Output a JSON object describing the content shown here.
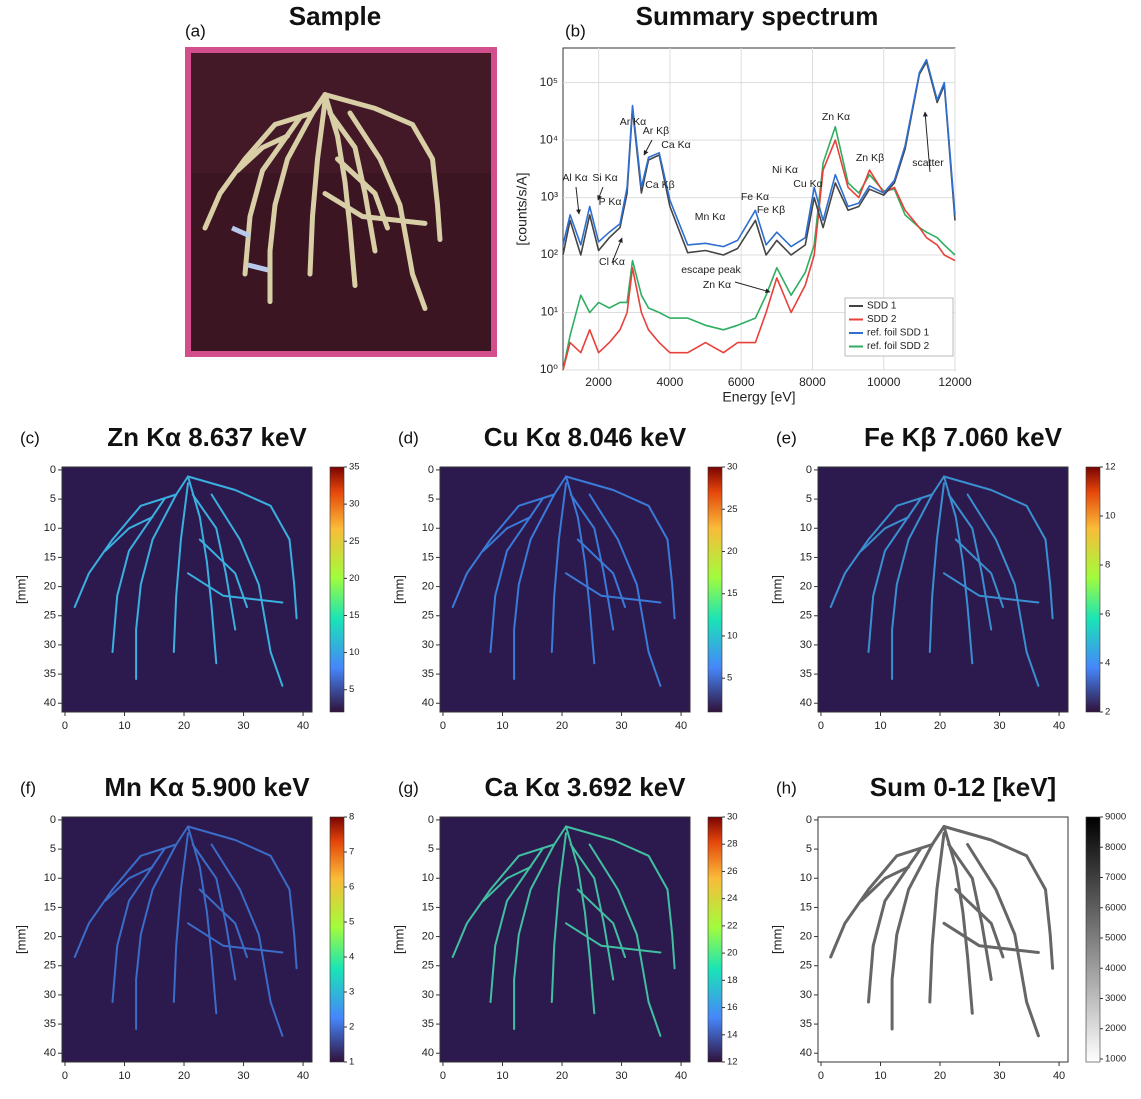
{
  "chart_data": [
    {
      "type": "image",
      "panel_label": "(a)",
      "title": "Sample"
    },
    {
      "type": "line",
      "panel_label": "(b)",
      "title": "Summary spectrum",
      "xlabel": "Energy [eV]",
      "ylabel": "[counts/s/A]",
      "log_y": true,
      "grid": true,
      "legend": "lower right",
      "x": [
        1000,
        1200,
        1500,
        1750,
        2000,
        2300,
        2600,
        2800,
        2950,
        3200,
        3400,
        3700,
        4000,
        4500,
        5000,
        5500,
        5900,
        6400,
        6700,
        7000,
        7400,
        7800,
        8050,
        8300,
        8640,
        9000,
        9300,
        9600,
        10000,
        10300,
        10600,
        11000,
        11200,
        11500,
        11700,
        12000
      ],
      "series": [
        {
          "name": "SDD 1",
          "color": "#444444",
          "values": [
            100,
            400,
            100,
            500,
            120,
            200,
            300,
            1200,
            35000,
            1200,
            4500,
            5500,
            700,
            110,
            120,
            100,
            130,
            400,
            100,
            180,
            100,
            150,
            1000,
            300,
            1800,
            600,
            700,
            1400,
            1100,
            1800,
            7000,
            140000,
            230000,
            45000,
            90000,
            400
          ]
        },
        {
          "name": "SDD 2",
          "color": "#e8403a",
          "values": [
            1,
            3,
            2,
            5,
            2,
            3,
            5,
            10,
            60,
            10,
            5,
            3,
            2,
            2,
            3,
            2,
            3,
            3,
            10,
            40,
            10,
            30,
            100,
            3000,
            10000,
            1500,
            1000,
            3000,
            1200,
            1500,
            600,
            300,
            200,
            150,
            100,
            80
          ]
        },
        {
          "name": "ref. foil SDD 1",
          "color": "#2f6fd0",
          "values": [
            150,
            500,
            150,
            700,
            170,
            250,
            350,
            1500,
            40000,
            1500,
            5000,
            6000,
            900,
            150,
            160,
            140,
            180,
            600,
            150,
            250,
            140,
            200,
            1500,
            400,
            2500,
            700,
            800,
            1600,
            1200,
            2000,
            8000,
            150000,
            250000,
            50000,
            100000,
            500
          ]
        },
        {
          "name": "ref. foil SDD 2",
          "color": "#2fae62",
          "values": [
            1,
            4,
            20,
            10,
            15,
            12,
            15,
            15,
            80,
            20,
            12,
            10,
            8,
            8,
            6,
            5,
            6,
            8,
            20,
            60,
            20,
            50,
            150,
            4000,
            17000,
            1800,
            1200,
            2500,
            1300,
            1400,
            500,
            300,
            250,
            200,
            150,
            100
          ]
        }
      ],
      "xlim": [
        1000,
        12000
      ],
      "xticks": [
        2000,
        4000,
        6000,
        8000,
        10000,
        12000
      ],
      "ylim": [
        1,
        400000
      ],
      "yticks": [
        {
          "value": 1,
          "label": "10⁰"
        },
        {
          "value": 10,
          "label": "10¹"
        },
        {
          "value": 100,
          "label": "10²"
        },
        {
          "value": 1000,
          "label": "10³"
        },
        {
          "value": 10000,
          "label": "10⁴"
        },
        {
          "value": 100000,
          "label": "10⁵"
        }
      ],
      "annotations": [
        "Al Kα",
        "Si Kα",
        "P Kα",
        "Cl Kα",
        "Ar Kα",
        "Ar Kβ",
        "Ca Kα",
        "Ca Kβ",
        "Mn Kα",
        "Fe Kα",
        "Fe Kβ",
        "Ni Kα",
        "Cu Kα",
        "Zn Kα",
        "Zn Kβ",
        "scatter",
        "escape peak",
        "Zn Kα"
      ]
    },
    {
      "type": "heatmap",
      "panel_label": "(c)",
      "title": "Zn Kα 8.637 keV",
      "ylabel": "[mm]",
      "colormap": "turbo",
      "xlim": [
        -0.5,
        41.5
      ],
      "xticks": [
        0,
        10,
        20,
        30,
        40
      ],
      "ylim": [
        41.5,
        -0.5
      ],
      "yticks": [
        0,
        5,
        10,
        15,
        20,
        25,
        30,
        35,
        40
      ],
      "clim": [
        2,
        35
      ],
      "cticks": [
        5,
        10,
        15,
        20,
        25,
        30,
        35
      ]
    },
    {
      "type": "heatmap",
      "panel_label": "(d)",
      "title": "Cu Kα 8.046 keV",
      "ylabel": "[mm]",
      "colormap": "turbo",
      "xlim": [
        -0.5,
        41.5
      ],
      "xticks": [
        0,
        10,
        20,
        30,
        40
      ],
      "ylim": [
        41.5,
        -0.5
      ],
      "yticks": [
        0,
        5,
        10,
        15,
        20,
        25,
        30,
        35,
        40
      ],
      "clim": [
        1,
        30
      ],
      "cticks": [
        5,
        10,
        15,
        20,
        25,
        30
      ]
    },
    {
      "type": "heatmap",
      "panel_label": "(e)",
      "title": "Fe Kβ 7.060 keV",
      "ylabel": "[mm]",
      "colormap": "turbo",
      "xlim": [
        -0.5,
        41.5
      ],
      "xticks": [
        0,
        10,
        20,
        30,
        40
      ],
      "ylim": [
        41.5,
        -0.5
      ],
      "yticks": [
        0,
        5,
        10,
        15,
        20,
        25,
        30,
        35,
        40
      ],
      "clim": [
        2,
        12
      ],
      "cticks": [
        2,
        4,
        6,
        8,
        10,
        12
      ]
    },
    {
      "type": "heatmap",
      "panel_label": "(f)",
      "title": "Mn Kα 5.900 keV",
      "ylabel": "[mm]",
      "colormap": "turbo",
      "xlim": [
        -0.5,
        41.5
      ],
      "xticks": [
        0,
        10,
        20,
        30,
        40
      ],
      "ylim": [
        41.5,
        -0.5
      ],
      "yticks": [
        0,
        5,
        10,
        15,
        20,
        25,
        30,
        35,
        40
      ],
      "clim": [
        1,
        8
      ],
      "cticks": [
        1,
        2,
        3,
        4,
        5,
        6,
        7,
        8
      ]
    },
    {
      "type": "heatmap",
      "panel_label": "(g)",
      "title": "Ca Kα 3.692 keV",
      "ylabel": "[mm]",
      "colormap": "turbo",
      "xlim": [
        -0.5,
        41.5
      ],
      "xticks": [
        0,
        10,
        20,
        30,
        40
      ],
      "ylim": [
        41.5,
        -0.5
      ],
      "yticks": [
        0,
        5,
        10,
        15,
        20,
        25,
        30,
        35,
        40
      ],
      "clim": [
        12,
        30
      ],
      "cticks": [
        12,
        14,
        16,
        18,
        20,
        22,
        24,
        26,
        28,
        30
      ]
    },
    {
      "type": "heatmap",
      "panel_label": "(h)",
      "title": "Sum 0-12 [keV]",
      "ylabel": "[mm]",
      "colormap": "greys",
      "xlim": [
        -0.5,
        41.5
      ],
      "xticks": [
        0,
        10,
        20,
        30,
        40
      ],
      "ylim": [
        41.5,
        -0.5
      ],
      "yticks": [
        0,
        5,
        10,
        15,
        20,
        25,
        30,
        35,
        40
      ],
      "clim": [
        900,
        9000
      ],
      "cticks": [
        1000,
        2000,
        3000,
        4000,
        5000,
        6000,
        7000,
        8000,
        9000
      ]
    }
  ]
}
